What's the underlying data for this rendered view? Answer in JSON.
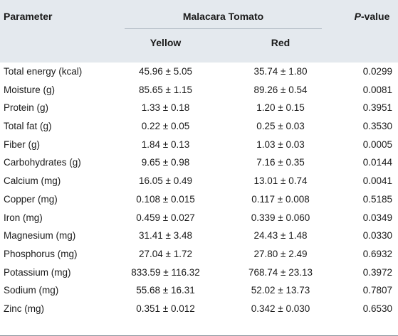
{
  "table": {
    "header": {
      "parameter": "Parameter",
      "group": "Malacara Tomato",
      "yellow": "Yellow",
      "red": "Red",
      "pvalue_italic": "P",
      "pvalue_rest": "-value"
    },
    "rows": [
      {
        "parameter": "Total energy (kcal)",
        "yellow": "45.96 ± 5.05",
        "red": "35.74 ± 1.80",
        "pvalue": "0.0299"
      },
      {
        "parameter": "Moisture (g)",
        "yellow": "85.65 ± 1.15",
        "red": "89.26 ± 0.54",
        "pvalue": "0.0081"
      },
      {
        "parameter": "Protein (g)",
        "yellow": "1.33 ± 0.18",
        "red": "1.20 ± 0.15",
        "pvalue": "0.3951"
      },
      {
        "parameter": "Total fat (g)",
        "yellow": "0.22 ± 0.05",
        "red": "0.25 ± 0.03",
        "pvalue": "0.3530"
      },
      {
        "parameter": "Fiber (g)",
        "yellow": "1.84 ± 0.13",
        "red": "1.03 ± 0.03",
        "pvalue": "0.0005"
      },
      {
        "parameter": "Carbohydrates (g)",
        "yellow": "9.65 ± 0.98",
        "red": "7.16 ± 0.35",
        "pvalue": "0.0144"
      },
      {
        "parameter": "Calcium (mg)",
        "yellow": "16.05 ± 0.49",
        "red": "13.01 ± 0.74",
        "pvalue": "0.0041"
      },
      {
        "parameter": "Copper (mg)",
        "yellow": "0.108 ± 0.015",
        "red": "0.117 ± 0.008",
        "pvalue": "0.5185"
      },
      {
        "parameter": "Iron (mg)",
        "yellow": "0.459 ± 0.027",
        "red": "0.339 ± 0.060",
        "pvalue": "0.0349"
      },
      {
        "parameter": "Magnesium (mg)",
        "yellow": "31.41 ± 3.48",
        "red": "24.43 ± 1.48",
        "pvalue": "0.0330"
      },
      {
        "parameter": "Phosphorus (mg)",
        "yellow": "27.04 ± 1.72",
        "red": "27.80 ± 2.49",
        "pvalue": "0.6932"
      },
      {
        "parameter": "Potassium (mg)",
        "yellow": "833.59 ± 116.32",
        "red": "768.74 ± 23.13",
        "pvalue": "0.3972"
      },
      {
        "parameter": "Sodium (mg)",
        "yellow": "55.68 ± 16.31",
        "red": "52.02 ± 13.73",
        "pvalue": "0.7807"
      },
      {
        "parameter": "Zinc (mg)",
        "yellow": "0.351 ± 0.012",
        "red": "0.342 ± 0.030",
        "pvalue": "0.6530"
      }
    ]
  }
}
